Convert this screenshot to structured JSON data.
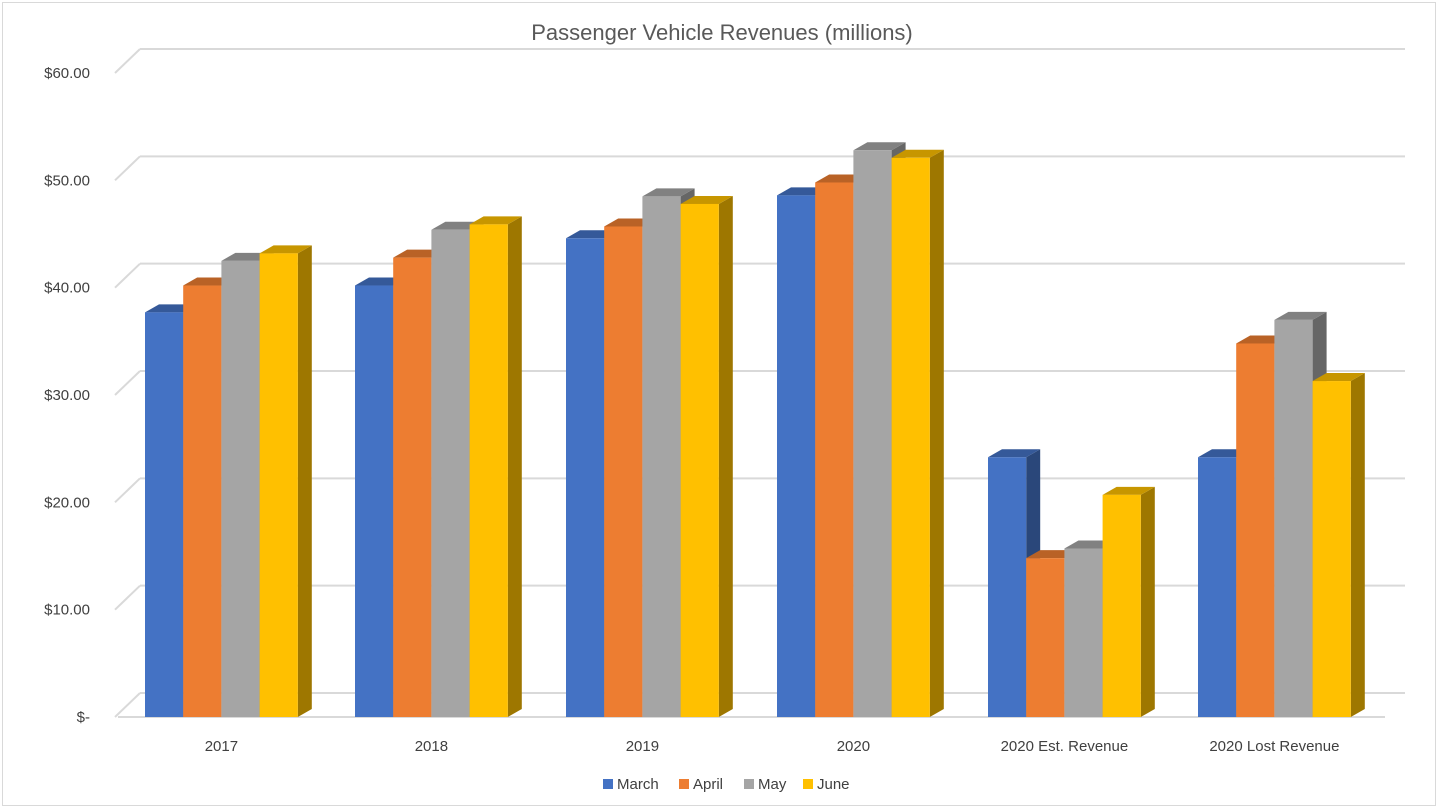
{
  "chart_data": {
    "type": "bar",
    "title": "Passenger Vehicle Revenues (millions)",
    "categories": [
      "2017",
      "2018",
      "2019",
      "2020",
      "2020 Est. Revenue",
      "2020 Lost Revenue"
    ],
    "series": [
      {
        "name": "March",
        "color": "#4472C4",
        "values": [
          37.7,
          40.2,
          44.6,
          48.6,
          24.2,
          24.2
        ]
      },
      {
        "name": "April",
        "color": "#ED7D31",
        "values": [
          40.2,
          42.8,
          45.7,
          49.8,
          14.8,
          34.8
        ]
      },
      {
        "name": "May",
        "color": "#A5A5A5",
        "values": [
          42.5,
          45.4,
          48.5,
          52.8,
          15.7,
          37.0
        ]
      },
      {
        "name": "June",
        "color": "#FFC000",
        "values": [
          43.2,
          45.9,
          47.8,
          52.1,
          20.7,
          31.3
        ]
      }
    ],
    "yticks": [
      "$-",
      "$10.00",
      "$20.00",
      "$30.00",
      "$40.00",
      "$50.00",
      "$60.00"
    ],
    "ylim": [
      0,
      60
    ],
    "grid": true,
    "legend": "bottom",
    "style": "3d-clustered-column"
  }
}
